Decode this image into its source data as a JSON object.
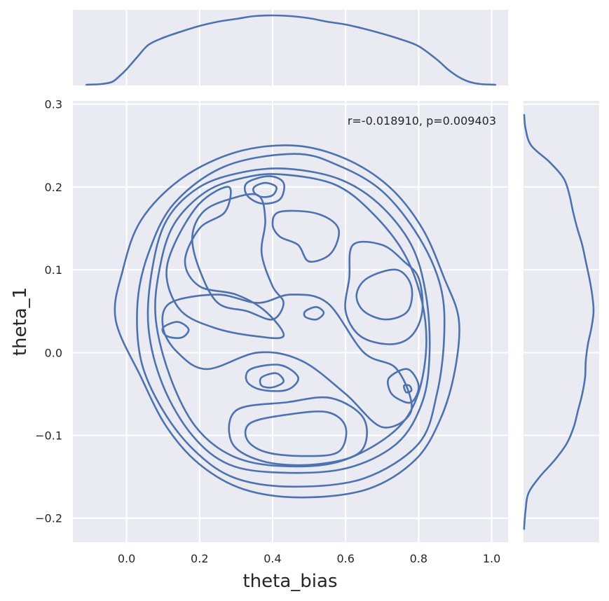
{
  "chart_data": {
    "type": "jointplot-kde",
    "xlabel": "theta_bias",
    "ylabel": "theta_1",
    "annotation": "r=-0.018910, p=0.009403",
    "line_color": "#4c72b0",
    "background_color": "#eaeaf2",
    "x_ticks": [
      0.0,
      0.2,
      0.4,
      0.6,
      0.8,
      1.0
    ],
    "x_tick_labels": [
      "0.0",
      "0.2",
      "0.4",
      "0.6",
      "0.8",
      "1.0"
    ],
    "y_ticks": [
      -0.2,
      -0.1,
      0.0,
      0.1,
      0.2,
      0.3
    ],
    "y_tick_labels": [
      "−0.2",
      "−0.1",
      "0.0",
      "0.1",
      "0.2",
      "0.3"
    ],
    "xlim": [
      -0.147,
      1.045
    ],
    "ylim": [
      -0.229,
      0.304
    ],
    "grid": true,
    "marginal_x_kde": {
      "x": [
        -0.11,
        -0.07,
        -0.04,
        -0.02,
        0.0,
        0.03,
        0.06,
        0.1,
        0.15,
        0.2,
        0.25,
        0.3,
        0.35,
        0.4,
        0.45,
        0.5,
        0.55,
        0.6,
        0.65,
        0.7,
        0.75,
        0.8,
        0.85,
        0.88,
        0.91,
        0.94,
        0.97,
        1.01
      ],
      "density": [
        0.0,
        0.01,
        0.04,
        0.12,
        0.22,
        0.4,
        0.57,
        0.67,
        0.76,
        0.84,
        0.9,
        0.94,
        0.98,
        0.99,
        0.98,
        0.95,
        0.9,
        0.86,
        0.8,
        0.73,
        0.65,
        0.55,
        0.36,
        0.22,
        0.11,
        0.04,
        0.01,
        0.0
      ]
    },
    "marginal_y_kde": {
      "y": [
        0.287,
        0.27,
        0.25,
        0.23,
        0.21,
        0.19,
        0.17,
        0.15,
        0.13,
        0.11,
        0.09,
        0.07,
        0.05,
        0.03,
        0.01,
        -0.01,
        -0.03,
        -0.05,
        -0.07,
        -0.09,
        -0.11,
        -0.13,
        -0.15,
        -0.17,
        -0.19,
        -0.21,
        -0.213
      ],
      "density": [
        0.0,
        0.02,
        0.1,
        0.36,
        0.56,
        0.64,
        0.69,
        0.75,
        0.82,
        0.87,
        0.92,
        0.96,
        0.98,
        0.95,
        0.9,
        0.87,
        0.86,
        0.82,
        0.76,
        0.7,
        0.6,
        0.43,
        0.22,
        0.06,
        0.02,
        0.0,
        0.0
      ]
    },
    "contours": [
      {
        "name": "outer-contour-1",
        "closed": true,
        "points": [
          [
            0.46,
            0.25
          ],
          [
            0.6,
            0.234
          ],
          [
            0.72,
            0.2
          ],
          [
            0.81,
            0.15
          ],
          [
            0.87,
            0.09
          ],
          [
            0.91,
            0.04
          ],
          [
            0.9,
            -0.02
          ],
          [
            0.86,
            -0.08
          ],
          [
            0.79,
            -0.13
          ],
          [
            0.66,
            -0.165
          ],
          [
            0.48,
            -0.175
          ],
          [
            0.32,
            -0.165
          ],
          [
            0.2,
            -0.135
          ],
          [
            0.11,
            -0.09
          ],
          [
            0.04,
            -0.03
          ],
          [
            -0.03,
            0.04
          ],
          [
            -0.01,
            0.1
          ],
          [
            0.04,
            0.16
          ],
          [
            0.15,
            0.21
          ],
          [
            0.3,
            0.242
          ]
        ]
      },
      {
        "name": "outer-contour-2",
        "closed": true,
        "points": [
          [
            0.46,
            0.24
          ],
          [
            0.58,
            0.226
          ],
          [
            0.7,
            0.195
          ],
          [
            0.8,
            0.14
          ],
          [
            0.86,
            0.08
          ],
          [
            0.87,
            0.02
          ],
          [
            0.85,
            -0.05
          ],
          [
            0.8,
            -0.11
          ],
          [
            0.65,
            -0.152
          ],
          [
            0.46,
            -0.162
          ],
          [
            0.3,
            -0.152
          ],
          [
            0.19,
            -0.12
          ],
          [
            0.1,
            -0.07
          ],
          [
            0.04,
            -0.01
          ],
          [
            0.03,
            0.06
          ],
          [
            0.06,
            0.12
          ],
          [
            0.13,
            0.18
          ],
          [
            0.27,
            0.225
          ]
        ]
      },
      {
        "name": "outer-contour-3",
        "closed": true,
        "points": [
          [
            0.44,
            0.222
          ],
          [
            0.58,
            0.21
          ],
          [
            0.69,
            0.18
          ],
          [
            0.78,
            0.13
          ],
          [
            0.82,
            0.07
          ],
          [
            0.83,
            0.0
          ],
          [
            0.81,
            -0.06
          ],
          [
            0.74,
            -0.11
          ],
          [
            0.6,
            -0.14
          ],
          [
            0.42,
            -0.145
          ],
          [
            0.28,
            -0.135
          ],
          [
            0.18,
            -0.1
          ],
          [
            0.1,
            -0.04
          ],
          [
            0.06,
            0.03
          ],
          [
            0.07,
            0.1
          ],
          [
            0.11,
            0.16
          ],
          [
            0.2,
            0.2
          ],
          [
            0.32,
            0.218
          ]
        ]
      },
      {
        "name": "outer-contour-4",
        "closed": true,
        "points": [
          [
            0.43,
            0.215
          ],
          [
            0.57,
            0.203
          ],
          [
            0.67,
            0.17
          ],
          [
            0.76,
            0.12
          ],
          [
            0.81,
            0.06
          ],
          [
            0.82,
            0.0
          ],
          [
            0.79,
            -0.06
          ],
          [
            0.72,
            -0.1
          ],
          [
            0.58,
            -0.132
          ],
          [
            0.42,
            -0.137
          ],
          [
            0.29,
            -0.125
          ],
          [
            0.19,
            -0.09
          ],
          [
            0.12,
            -0.03
          ],
          [
            0.08,
            0.04
          ],
          [
            0.09,
            0.1
          ],
          [
            0.13,
            0.155
          ],
          [
            0.22,
            0.195
          ],
          [
            0.33,
            0.212
          ]
        ]
      },
      {
        "name": "inner-contour-top-left",
        "closed": true,
        "points": [
          [
            0.28,
            0.185
          ],
          [
            0.36,
            0.19
          ],
          [
            0.38,
            0.16
          ],
          [
            0.37,
            0.12
          ],
          [
            0.4,
            0.08
          ],
          [
            0.43,
            0.06
          ],
          [
            0.4,
            0.04
          ],
          [
            0.33,
            0.05
          ],
          [
            0.25,
            0.06
          ],
          [
            0.2,
            0.1
          ],
          [
            0.18,
            0.14
          ],
          [
            0.21,
            0.17
          ]
        ]
      },
      {
        "name": "inner-contour-top-center",
        "closed": true,
        "points": [
          [
            0.42,
            0.17
          ],
          [
            0.52,
            0.168
          ],
          [
            0.58,
            0.15
          ],
          [
            0.56,
            0.12
          ],
          [
            0.5,
            0.11
          ],
          [
            0.47,
            0.13
          ],
          [
            0.42,
            0.14
          ],
          [
            0.4,
            0.155
          ]
        ]
      },
      {
        "name": "inner-contour-right",
        "closed": true,
        "points": [
          [
            0.66,
            0.09
          ],
          [
            0.74,
            0.1
          ],
          [
            0.78,
            0.08
          ],
          [
            0.77,
            0.05
          ],
          [
            0.71,
            0.04
          ],
          [
            0.65,
            0.05
          ],
          [
            0.63,
            0.07
          ]
        ]
      },
      {
        "name": "inner-contour-right-mid",
        "closed": true,
        "points": [
          [
            0.62,
            0.13
          ],
          [
            0.7,
            0.13
          ],
          [
            0.76,
            0.11
          ],
          [
            0.8,
            0.09
          ],
          [
            0.81,
            0.05
          ],
          [
            0.78,
            0.02
          ],
          [
            0.72,
            0.01
          ],
          [
            0.64,
            0.02
          ],
          [
            0.6,
            0.05
          ],
          [
            0.61,
            0.09
          ]
        ]
      },
      {
        "name": "inner-contour-dot-top",
        "closed": true,
        "points": [
          [
            0.35,
            0.2
          ],
          [
            0.38,
            0.205
          ],
          [
            0.41,
            0.2
          ],
          [
            0.4,
            0.19
          ],
          [
            0.37,
            0.188
          ],
          [
            0.35,
            0.193
          ]
        ]
      },
      {
        "name": "inner-contour-dot-top-2",
        "closed": true,
        "points": [
          [
            0.33,
            0.205
          ],
          [
            0.39,
            0.213
          ],
          [
            0.43,
            0.205
          ],
          [
            0.42,
            0.185
          ],
          [
            0.37,
            0.18
          ],
          [
            0.33,
            0.19
          ]
        ]
      },
      {
        "name": "inner-contour-dot-center",
        "closed": true,
        "points": [
          [
            0.49,
            0.05
          ],
          [
            0.52,
            0.055
          ],
          [
            0.54,
            0.048
          ],
          [
            0.52,
            0.04
          ],
          [
            0.49,
            0.043
          ]
        ]
      },
      {
        "name": "inner-contour-dot-left",
        "closed": true,
        "points": [
          [
            0.1,
            0.03
          ],
          [
            0.14,
            0.037
          ],
          [
            0.17,
            0.028
          ],
          [
            0.15,
            0.018
          ],
          [
            0.11,
            0.02
          ]
        ]
      },
      {
        "name": "inner-contour-bottom-center",
        "closed": true,
        "points": [
          [
            0.34,
            -0.02
          ],
          [
            0.42,
            -0.015
          ],
          [
            0.47,
            -0.03
          ],
          [
            0.44,
            -0.045
          ],
          [
            0.37,
            -0.045
          ],
          [
            0.33,
            -0.035
          ]
        ]
      },
      {
        "name": "inner-contour-bottom-dot",
        "closed": true,
        "points": [
          [
            0.37,
            -0.03
          ],
          [
            0.41,
            -0.025
          ],
          [
            0.43,
            -0.035
          ],
          [
            0.4,
            -0.042
          ],
          [
            0.37,
            -0.04
          ]
        ]
      },
      {
        "name": "inner-contour-bottom",
        "closed": true,
        "points": [
          [
            0.34,
            -0.085
          ],
          [
            0.44,
            -0.075
          ],
          [
            0.55,
            -0.072
          ],
          [
            0.6,
            -0.09
          ],
          [
            0.58,
            -0.12
          ],
          [
            0.48,
            -0.125
          ],
          [
            0.38,
            -0.12
          ],
          [
            0.33,
            -0.105
          ]
        ]
      },
      {
        "name": "inner-contour-bottom-2",
        "closed": true,
        "points": [
          [
            0.3,
            -0.07
          ],
          [
            0.44,
            -0.06
          ],
          [
            0.56,
            -0.055
          ],
          [
            0.65,
            -0.08
          ],
          [
            0.64,
            -0.12
          ],
          [
            0.52,
            -0.135
          ],
          [
            0.38,
            -0.132
          ],
          [
            0.29,
            -0.11
          ]
        ]
      },
      {
        "name": "inner-contour-right-low",
        "closed": true,
        "points": [
          [
            0.72,
            -0.03
          ],
          [
            0.77,
            -0.02
          ],
          [
            0.8,
            -0.04
          ],
          [
            0.78,
            -0.06
          ],
          [
            0.74,
            -0.055
          ],
          [
            0.72,
            -0.045
          ]
        ]
      },
      {
        "name": "inner-contour-dot-right-low",
        "closed": true,
        "points": [
          [
            0.76,
            -0.04
          ],
          [
            0.775,
            -0.04
          ],
          [
            0.78,
            -0.046
          ],
          [
            0.766,
            -0.048
          ]
        ]
      },
      {
        "name": "inner-contour-middle-band",
        "closed": true,
        "points": [
          [
            0.12,
            0.06
          ],
          [
            0.25,
            0.07
          ],
          [
            0.36,
            0.06
          ],
          [
            0.45,
            0.07
          ],
          [
            0.55,
            0.06
          ],
          [
            0.65,
            0.0
          ],
          [
            0.74,
            -0.02
          ],
          [
            0.78,
            -0.07
          ],
          [
            0.7,
            -0.09
          ],
          [
            0.6,
            -0.05
          ],
          [
            0.48,
            -0.01
          ],
          [
            0.36,
            0.0
          ],
          [
            0.22,
            -0.02
          ],
          [
            0.14,
            0.0
          ],
          [
            0.1,
            0.03
          ]
        ]
      },
      {
        "name": "inner-contour-left-wave",
        "closed": true,
        "points": [
          [
            0.13,
            0.13
          ],
          [
            0.2,
            0.18
          ],
          [
            0.28,
            0.2
          ],
          [
            0.27,
            0.17
          ],
          [
            0.2,
            0.15
          ],
          [
            0.16,
            0.11
          ],
          [
            0.2,
            0.08
          ],
          [
            0.3,
            0.07
          ],
          [
            0.38,
            0.05
          ],
          [
            0.43,
            0.02
          ],
          [
            0.35,
            0.02
          ],
          [
            0.24,
            0.03
          ],
          [
            0.15,
            0.05
          ],
          [
            0.11,
            0.09
          ]
        ]
      }
    ]
  }
}
